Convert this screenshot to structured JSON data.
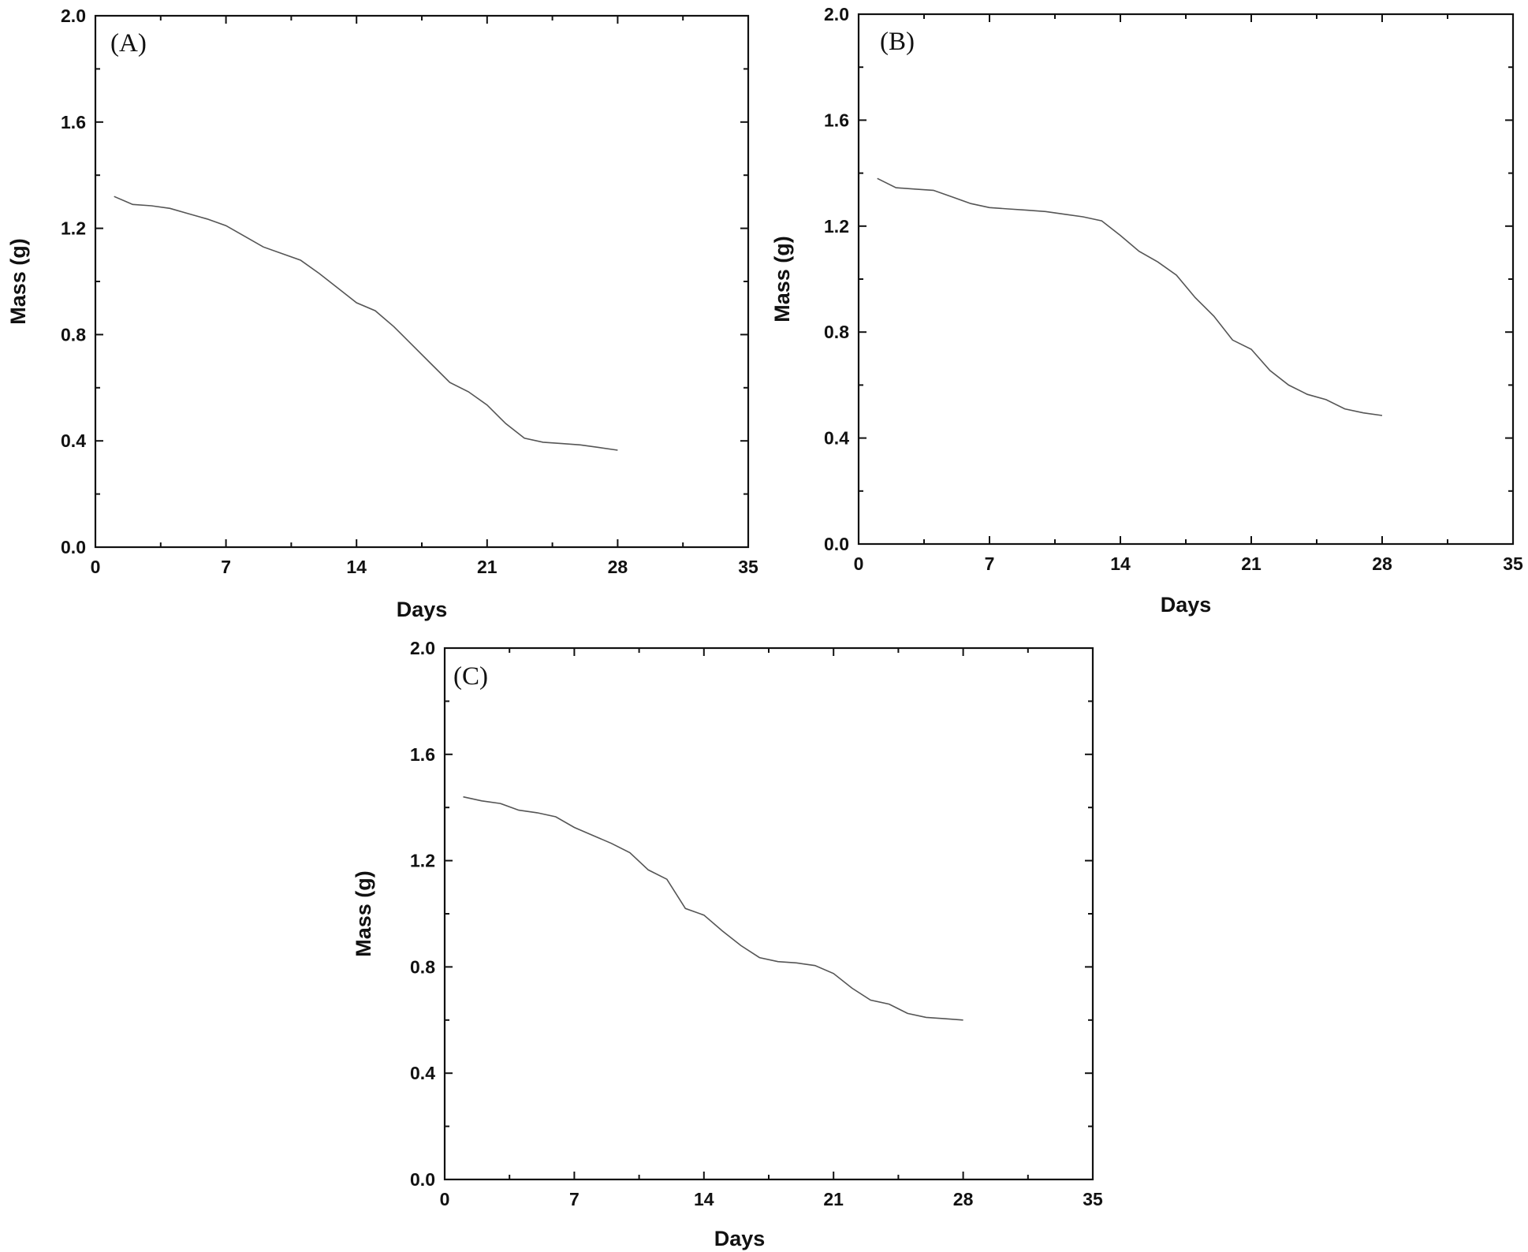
{
  "chart_data": [
    {
      "type": "line",
      "panel_label": "(A)",
      "xlabel": "Days",
      "ylabel": "Mass (g)",
      "xlim": [
        0,
        35
      ],
      "ylim": [
        0.0,
        2.0
      ],
      "x_ticks": [
        0,
        7,
        14,
        21,
        28,
        35
      ],
      "y_ticks": [
        "0.0",
        "0.4",
        "0.8",
        "1.2",
        "1.6",
        "2.0"
      ],
      "series": [
        {
          "name": "A",
          "x": [
            1,
            2,
            3,
            4,
            5,
            6,
            7,
            8,
            9,
            10,
            11,
            12,
            13,
            14,
            15,
            16,
            17,
            18,
            19,
            20,
            21,
            22,
            23,
            24,
            25,
            26,
            27,
            28
          ],
          "y": [
            1.32,
            1.29,
            1.285,
            1.275,
            1.255,
            1.235,
            1.21,
            1.17,
            1.13,
            1.105,
            1.08,
            1.03,
            0.975,
            0.92,
            0.89,
            0.83,
            0.76,
            0.69,
            0.62,
            0.585,
            0.535,
            0.465,
            0.41,
            0.395,
            0.39,
            0.385,
            0.375,
            0.365
          ]
        }
      ]
    },
    {
      "type": "line",
      "panel_label": "(B)",
      "xlabel": "Days",
      "ylabel": "Mass (g)",
      "xlim": [
        0,
        35
      ],
      "ylim": [
        0.0,
        2.0
      ],
      "x_ticks": [
        0,
        7,
        14,
        21,
        28,
        35
      ],
      "y_ticks": [
        "0.0",
        "0.4",
        "0.8",
        "1.2",
        "1.6",
        "2.0"
      ],
      "series": [
        {
          "name": "B",
          "x": [
            1,
            2,
            3,
            4,
            5,
            6,
            7,
            8,
            9,
            10,
            11,
            12,
            13,
            14,
            15,
            16,
            17,
            18,
            19,
            20,
            21,
            22,
            23,
            24,
            25,
            26,
            27,
            28
          ],
          "y": [
            1.38,
            1.345,
            1.34,
            1.335,
            1.31,
            1.285,
            1.27,
            1.265,
            1.26,
            1.255,
            1.245,
            1.235,
            1.22,
            1.165,
            1.105,
            1.065,
            1.015,
            0.93,
            0.86,
            0.77,
            0.735,
            0.655,
            0.6,
            0.565,
            0.545,
            0.51,
            0.495,
            0.485
          ]
        }
      ]
    },
    {
      "type": "line",
      "panel_label": "(C)",
      "xlabel": "Days",
      "ylabel": "Mass (g)",
      "xlim": [
        0,
        35
      ],
      "ylim": [
        0.0,
        2.0
      ],
      "x_ticks": [
        0,
        7,
        14,
        21,
        28,
        35
      ],
      "y_ticks": [
        "0.0",
        "0.4",
        "0.8",
        "1.2",
        "1.6",
        "2.0"
      ],
      "series": [
        {
          "name": "C",
          "x": [
            1,
            2,
            3,
            4,
            5,
            6,
            7,
            8,
            9,
            10,
            11,
            12,
            13,
            14,
            15,
            16,
            17,
            18,
            19,
            20,
            21,
            22,
            23,
            24,
            25,
            26,
            27,
            28
          ],
          "y": [
            1.44,
            1.425,
            1.415,
            1.39,
            1.38,
            1.365,
            1.325,
            1.295,
            1.265,
            1.23,
            1.165,
            1.13,
            1.02,
            0.995,
            0.935,
            0.88,
            0.835,
            0.82,
            0.815,
            0.805,
            0.775,
            0.72,
            0.675,
            0.66,
            0.625,
            0.61,
            0.605,
            0.6
          ]
        }
      ]
    }
  ]
}
